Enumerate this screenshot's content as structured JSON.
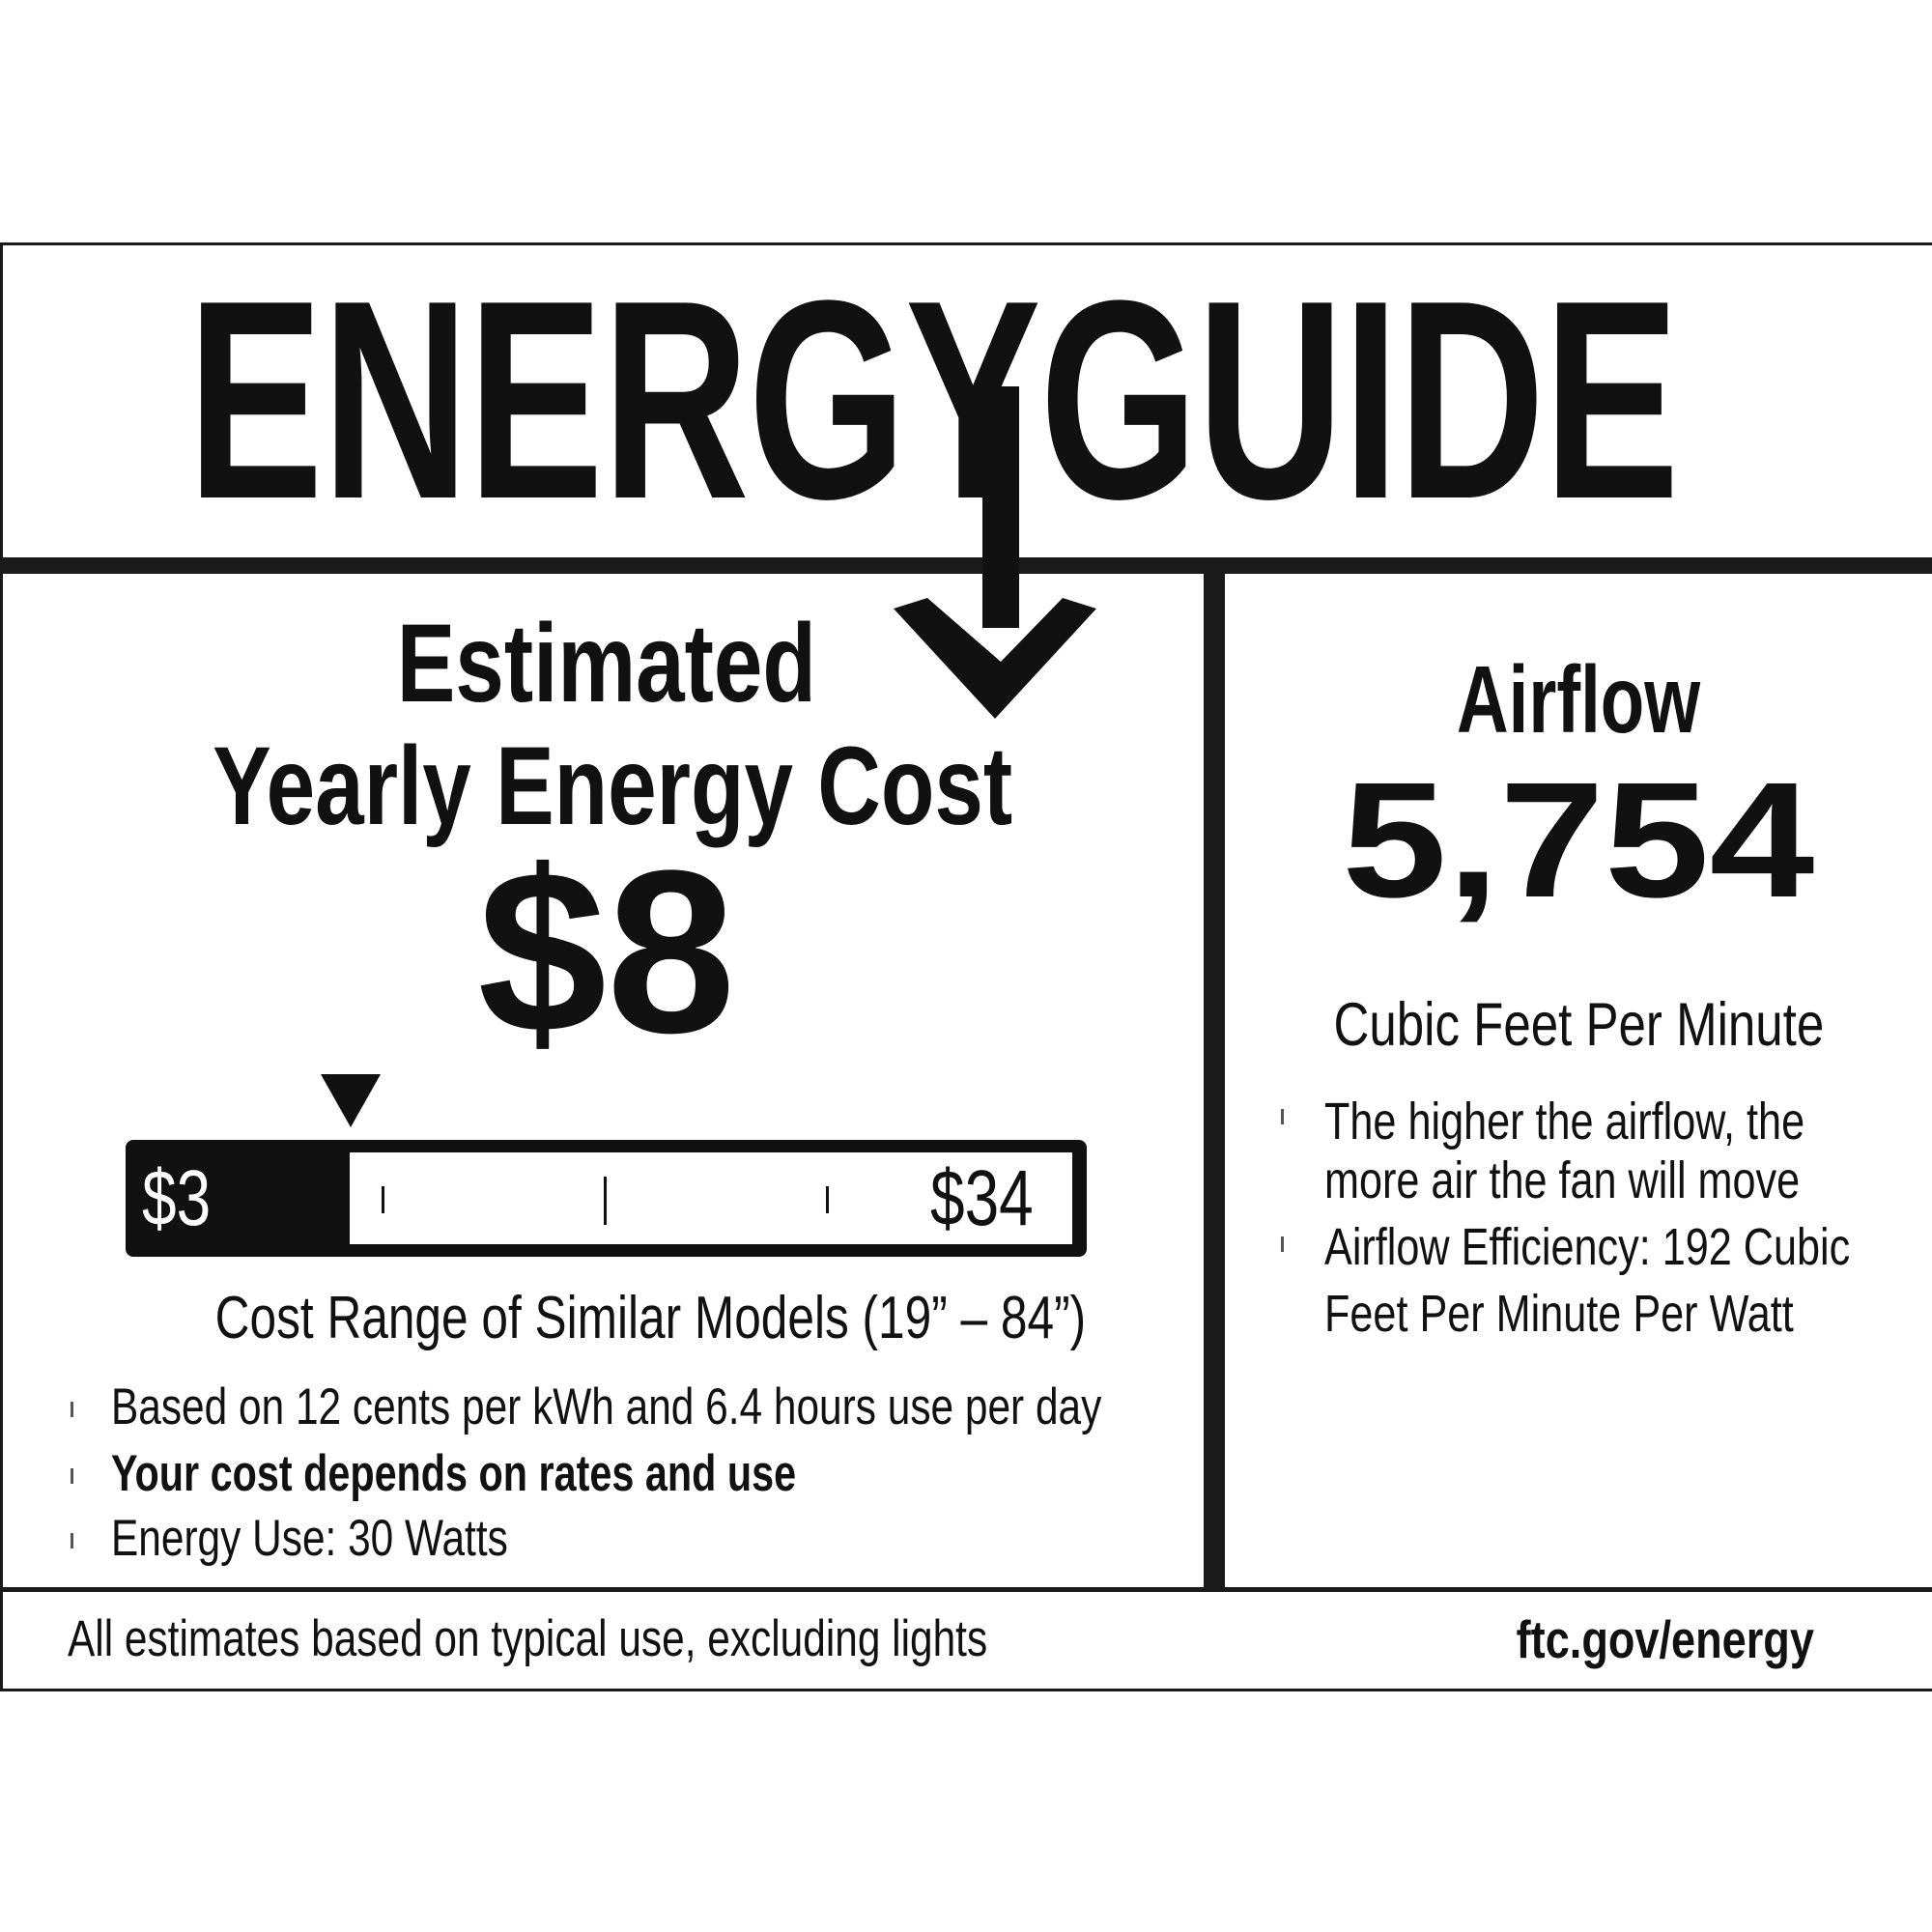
{
  "header": {
    "logo_text": "ENERGYGUIDE"
  },
  "cost": {
    "heading_line1": "Estimated",
    "heading_line2": "Yearly Energy Cost",
    "value": "$8",
    "scale": {
      "min_label": "$3",
      "max_label": "$34",
      "min": 3,
      "max": 34,
      "current": 8
    },
    "range_caption": "Cost Range of Similar Models (19” – 84”)",
    "bullets": [
      {
        "text": "Based on 12 cents per kWh and 6.4 hours use per day",
        "bold": false
      },
      {
        "text": "Your cost depends on rates and use",
        "bold": true
      },
      {
        "text": "Energy Use: 30 Watts",
        "bold": false
      }
    ]
  },
  "airflow": {
    "heading": "Airflow",
    "value": "5,754",
    "unit": "Cubic Feet Per Minute",
    "bullets": [
      {
        "line1": "The higher the airflow, the",
        "line2": "more air the fan will move"
      },
      {
        "line1": "Airflow Efficiency: 192 Cubic",
        "line2": "Feet Per Minute Per Watt"
      }
    ]
  },
  "footer": {
    "note": "All estimates based on typical use, excluding lights",
    "link": "ftc.gov/energy"
  },
  "colors": {
    "ink": "#1a1a1a",
    "background": "#ffffff"
  }
}
